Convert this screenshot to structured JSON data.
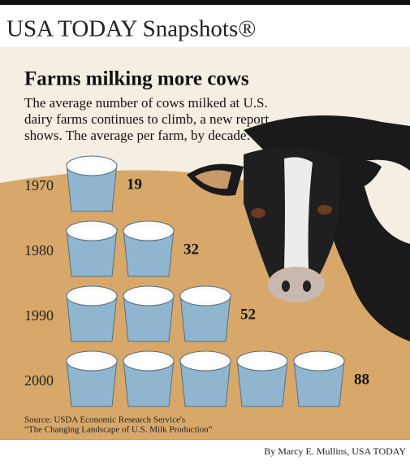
{
  "header": "USA TODAY Snapshots®",
  "chart_data": {
    "type": "pictogram",
    "title": "Farms milking more cows",
    "subtitle": [
      "The average number of cows milked at U.S.",
      "dairy farms continues to climb, a new report",
      "shows. The average per farm, by decade:"
    ],
    "categories": [
      "1970",
      "1980",
      "1990",
      "2000"
    ],
    "values": [
      19,
      32,
      52,
      88
    ],
    "color": "#8fb5cf",
    "source": [
      "Source: USDA Economic Research Service's",
      "“The Changing Landscape of U.S. Milk Production”"
    ]
  },
  "credit": "By Marcy E. Mullins, USA TODAY"
}
